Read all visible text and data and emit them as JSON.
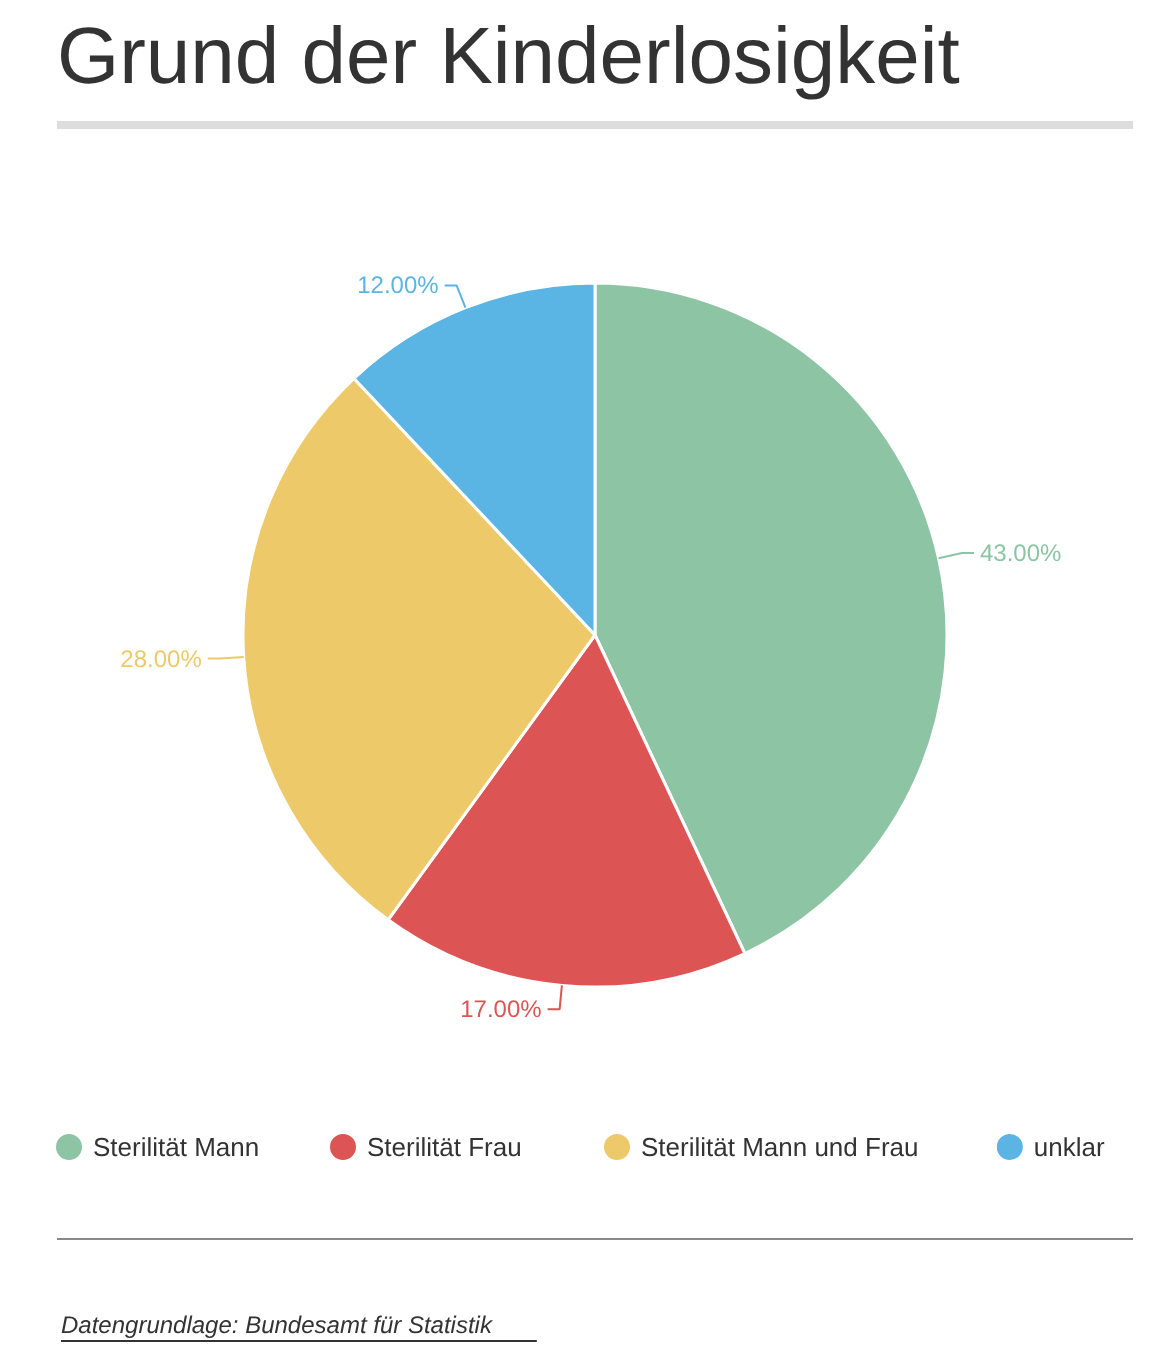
{
  "chart_data": {
    "type": "pie",
    "title": "Grund der Kinderlosigkeit",
    "categories": [
      "Sterilität Mann",
      "Sterilität Frau",
      "Sterilität Mann und Frau",
      "unklar"
    ],
    "values": [
      43,
      17,
      28,
      12
    ],
    "colors": [
      "#8cc4a4",
      "#dc5454",
      "#eec96a",
      "#5ab4e4"
    ],
    "value_labels": [
      "43.00%",
      "17.00%",
      "28.00%",
      "12.00%"
    ],
    "legend": "bottom",
    "annotations": [
      "Datengrundlage: Bundesamt für Statistik"
    ]
  }
}
